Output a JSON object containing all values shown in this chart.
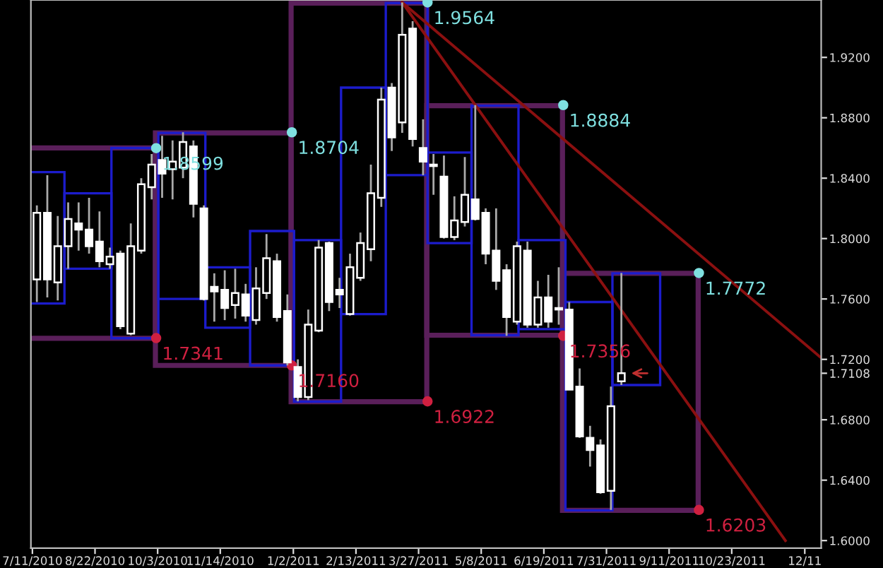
{
  "chart_data": {
    "type": "candlestick",
    "color": "#ffffff",
    "x": [
      "2010-07-14",
      "2010-07-21",
      "2010-07-28",
      "2010-08-04",
      "2010-08-11",
      "2010-08-18",
      "2010-08-25",
      "2010-09-01",
      "2010-09-08",
      "2010-09-15",
      "2010-09-22",
      "2010-09-29",
      "2010-10-06",
      "2010-10-13",
      "2010-10-20",
      "2010-10-27",
      "2010-11-03",
      "2010-11-10",
      "2010-11-17",
      "2010-11-24",
      "2010-12-01",
      "2010-12-08",
      "2010-12-15",
      "2010-12-22",
      "2010-12-29",
      "2011-01-05",
      "2011-01-12",
      "2011-01-19",
      "2011-01-26",
      "2011-02-02",
      "2011-02-09",
      "2011-02-16",
      "2011-02-23",
      "2011-03-02",
      "2011-03-09",
      "2011-03-16",
      "2011-03-23",
      "2011-03-30",
      "2011-04-06",
      "2011-04-13",
      "2011-04-20",
      "2011-04-27",
      "2011-05-04",
      "2011-05-11",
      "2011-05-18",
      "2011-05-25",
      "2011-06-01",
      "2011-06-08",
      "2011-06-15",
      "2011-06-22",
      "2011-06-29",
      "2011-07-06",
      "2011-07-13",
      "2011-07-20",
      "2011-07-27",
      "2011-08-03",
      "2011-08-10"
    ],
    "ohlc": [
      [
        1.773,
        1.822,
        1.758,
        1.817
      ],
      [
        1.817,
        1.842,
        1.761,
        1.773
      ],
      [
        1.771,
        1.815,
        1.759,
        1.795
      ],
      [
        1.795,
        1.824,
        1.78,
        1.813
      ],
      [
        1.81,
        1.824,
        1.792,
        1.806
      ],
      [
        1.806,
        1.827,
        1.79,
        1.795
      ],
      [
        1.798,
        1.818,
        1.781,
        1.785
      ],
      [
        1.783,
        1.794,
        1.78,
        1.788
      ],
      [
        1.79,
        1.792,
        1.74,
        1.742
      ],
      [
        1.737,
        1.81,
        1.736,
        1.795
      ],
      [
        1.792,
        1.84,
        1.79,
        1.836
      ],
      [
        1.834,
        1.856,
        1.826,
        1.849
      ],
      [
        1.852,
        1.868,
        1.827,
        1.843
      ],
      [
        1.846,
        1.865,
        1.826,
        1.851
      ],
      [
        1.847,
        1.8704,
        1.84,
        1.864
      ],
      [
        1.861,
        1.865,
        1.814,
        1.823
      ],
      [
        1.82,
        1.822,
        1.759,
        1.76
      ],
      [
        1.768,
        1.777,
        1.745,
        1.765
      ],
      [
        1.766,
        1.779,
        1.746,
        1.754
      ],
      [
        1.756,
        1.78,
        1.747,
        1.764
      ],
      [
        1.763,
        1.77,
        1.745,
        1.749
      ],
      [
        1.746,
        1.781,
        1.743,
        1.767
      ],
      [
        1.764,
        1.803,
        1.76,
        1.787
      ],
      [
        1.785,
        1.79,
        1.745,
        1.748
      ],
      [
        1.752,
        1.763,
        1.716,
        1.718
      ],
      [
        1.715,
        1.72,
        1.6922,
        1.695
      ],
      [
        1.695,
        1.753,
        1.693,
        1.743
      ],
      [
        1.739,
        1.799,
        1.738,
        1.794
      ],
      [
        1.797,
        1.798,
        1.752,
        1.758
      ],
      [
        1.766,
        1.774,
        1.754,
        1.763
      ],
      [
        1.75,
        1.79,
        1.749,
        1.781
      ],
      [
        1.774,
        1.804,
        1.772,
        1.797
      ],
      [
        1.793,
        1.849,
        1.785,
        1.83
      ],
      [
        1.827,
        1.9,
        1.821,
        1.892
      ],
      [
        1.9,
        1.903,
        1.858,
        1.867
      ],
      [
        1.877,
        1.9564,
        1.87,
        1.935
      ],
      [
        1.939,
        1.944,
        1.861,
        1.866
      ],
      [
        1.86,
        1.879,
        1.842,
        1.851
      ],
      [
        1.849,
        1.856,
        1.829,
        1.848
      ],
      [
        1.841,
        1.855,
        1.8,
        1.801
      ],
      [
        1.801,
        1.828,
        1.799,
        1.812
      ],
      [
        1.811,
        1.854,
        1.808,
        1.829
      ],
      [
        1.826,
        1.8884,
        1.812,
        1.813
      ],
      [
        1.817,
        1.82,
        1.783,
        1.79
      ],
      [
        1.792,
        1.82,
        1.766,
        1.772
      ],
      [
        1.779,
        1.783,
        1.7356,
        1.748
      ],
      [
        1.745,
        1.798,
        1.743,
        1.795
      ],
      [
        1.792,
        1.798,
        1.741,
        1.743
      ],
      [
        1.743,
        1.772,
        1.741,
        1.761
      ],
      [
        1.761,
        1.776,
        1.741,
        1.745
      ],
      [
        1.754,
        1.781,
        1.743,
        1.753
      ],
      [
        1.753,
        1.758,
        1.7,
        1.7
      ],
      [
        1.702,
        1.714,
        1.668,
        1.669
      ],
      [
        1.668,
        1.676,
        1.649,
        1.66
      ],
      [
        1.663,
        1.667,
        1.631,
        1.632
      ],
      [
        1.633,
        1.702,
        1.6203,
        1.689
      ],
      [
        1.7055,
        1.7772,
        1.703,
        1.7108
      ]
    ],
    "xlim": [
      "2010-07-10",
      "2011-12-22"
    ],
    "ylim": [
      1.595,
      1.958
    ],
    "xticks": [
      {
        "value": "2010-07-11",
        "label": "7/11/2010"
      },
      {
        "value": "2010-08-22",
        "label": "8/22/2010"
      },
      {
        "value": "2010-10-03",
        "label": "10/3/2010"
      },
      {
        "value": "2010-11-14",
        "label": "11/14/2010"
      },
      {
        "value": "2011-01-02",
        "label": "1/2/2011"
      },
      {
        "value": "2011-02-13",
        "label": "2/13/2011"
      },
      {
        "value": "2011-03-27",
        "label": "3/27/2011"
      },
      {
        "value": "2011-05-08",
        "label": "5/8/2011"
      },
      {
        "value": "2011-06-19",
        "label": "6/19/2011"
      },
      {
        "value": "2011-07-31",
        "label": "7/31/2011"
      },
      {
        "value": "2011-09-11",
        "label": "9/11/2011"
      },
      {
        "value": "2011-10-23",
        "label": "10/23/2011"
      },
      {
        "value": "2011-12-11",
        "label": "12/11"
      }
    ],
    "yticks": [
      {
        "value": 1.6,
        "label": "1.6000"
      },
      {
        "value": 1.64,
        "label": "1.6400"
      },
      {
        "value": 1.68,
        "label": "1.6800"
      },
      {
        "value": 1.7108,
        "label": "1.7108"
      },
      {
        "value": 1.72,
        "label": "1.7200"
      },
      {
        "value": 1.76,
        "label": "1.7600"
      },
      {
        "value": 1.8,
        "label": "1.8000"
      },
      {
        "value": 1.84,
        "label": "1.8400"
      },
      {
        "value": 1.88,
        "label": "1.8800"
      },
      {
        "value": 1.92,
        "label": "1.9200"
      }
    ],
    "series": [
      {
        "type": "bar",
        "color": "#5a1f5a",
        "x": [
          "2010-08-17",
          "2010-11-16",
          "2011-02-15",
          "2011-05-17",
          "2011-08-16"
        ],
        "base": [
          1.734,
          1.716,
          1.692,
          1.736,
          1.62
        ],
        "values": [
          0.126,
          0.154,
          0.264,
          0.152,
          0.157
        ]
      },
      {
        "type": "bar",
        "color": "#1c1ccc",
        "x": [
          "2010-07-17",
          "2010-08-17",
          "2010-09-18",
          "2010-10-19",
          "2010-11-20",
          "2010-12-18",
          "2011-01-18",
          "2011-02-19",
          "2011-03-19",
          "2011-04-16",
          "2011-05-17",
          "2011-06-18",
          "2011-07-19",
          "2011-08-20"
        ],
        "base": [
          1.757,
          1.78,
          1.734,
          1.76,
          1.741,
          1.716,
          1.692,
          1.75,
          1.842,
          1.797,
          1.736,
          1.74,
          1.62,
          1.703
        ],
        "values": [
          0.087,
          0.05,
          0.126,
          0.11,
          0.04,
          0.089,
          0.107,
          0.15,
          0.114,
          0.06,
          0.152,
          0.059,
          0.138,
          0.074
        ]
      },
      {
        "type": "line",
        "color": "#8b1010",
        "x": [
          "2011-03-16",
          "2011-11-28"
        ],
        "values": [
          1.9564,
          1.6
        ]
      },
      {
        "type": "line",
        "color": "#8b1010",
        "x": [
          "2011-03-16",
          "2011-12-22"
        ],
        "values": [
          1.9564,
          1.721
        ]
      },
      {
        "type": "scatter",
        "color": "#7fe0e0",
        "x": [
          "2010-10-02",
          "2011-01-01",
          "2011-04-02",
          "2011-07-02",
          "2011-10-01"
        ],
        "values": [
          1.8599,
          1.8704,
          1.9564,
          1.8884,
          1.7772
        ],
        "value_labels": [
          "1.8599",
          "1.8704",
          "1.9564",
          "1.8884",
          "1.7772"
        ]
      },
      {
        "type": "scatter",
        "color": "#d02040",
        "x": [
          "2010-10-02",
          "2011-01-01",
          "2011-04-02",
          "2011-07-02",
          "2011-10-01"
        ],
        "values": [
          1.7341,
          1.716,
          1.6922,
          1.7356,
          1.6203
        ],
        "value_labels": [
          "1.7341",
          "1.7160",
          "1.6922",
          "1.7356",
          "1.6203"
        ]
      }
    ]
  }
}
